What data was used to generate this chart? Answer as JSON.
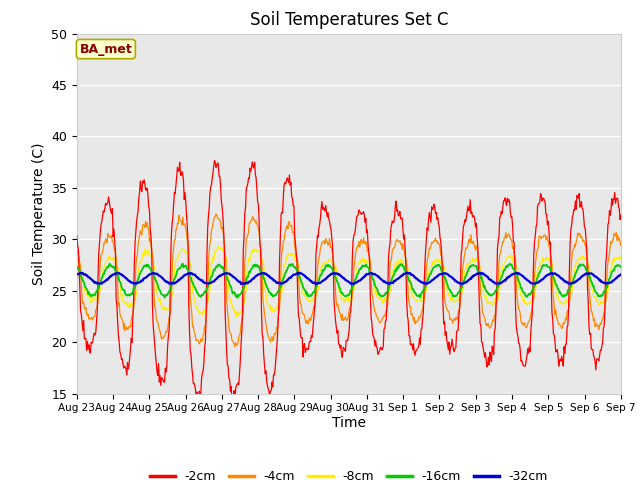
{
  "title": "Soil Temperatures Set C",
  "xlabel": "Time",
  "ylabel": "Soil Temperature (C)",
  "ylim": [
    15,
    50
  ],
  "colors": {
    "-2cm": "#ff0000",
    "-4cm": "#ff8800",
    "-8cm": "#ffee00",
    "-16cm": "#00cc00",
    "-32cm": "#0000dd"
  },
  "annotation_text": "BA_met",
  "annotation_box_facecolor": "#ffffcc",
  "annotation_text_color": "#880000",
  "annotation_border_color": "#aaaa00",
  "x_tick_labels": [
    "Aug 23",
    "Aug 24",
    "Aug 25",
    "Aug 26",
    "Aug 27",
    "Aug 28",
    "Aug 29",
    "Aug 30",
    "Aug 31",
    "Sep 1",
    "Sep 2",
    "Sep 3",
    "Sep 4",
    "Sep 5",
    "Sep 6",
    "Sep 7"
  ],
  "yticks": [
    15,
    20,
    25,
    30,
    35,
    40,
    45,
    50
  ],
  "fig_facecolor": "#ffffff",
  "axes_facecolor": "#e8e8e8",
  "n_days": 15,
  "n_per_day": 48,
  "base_mean": 26.0,
  "seed": 12
}
